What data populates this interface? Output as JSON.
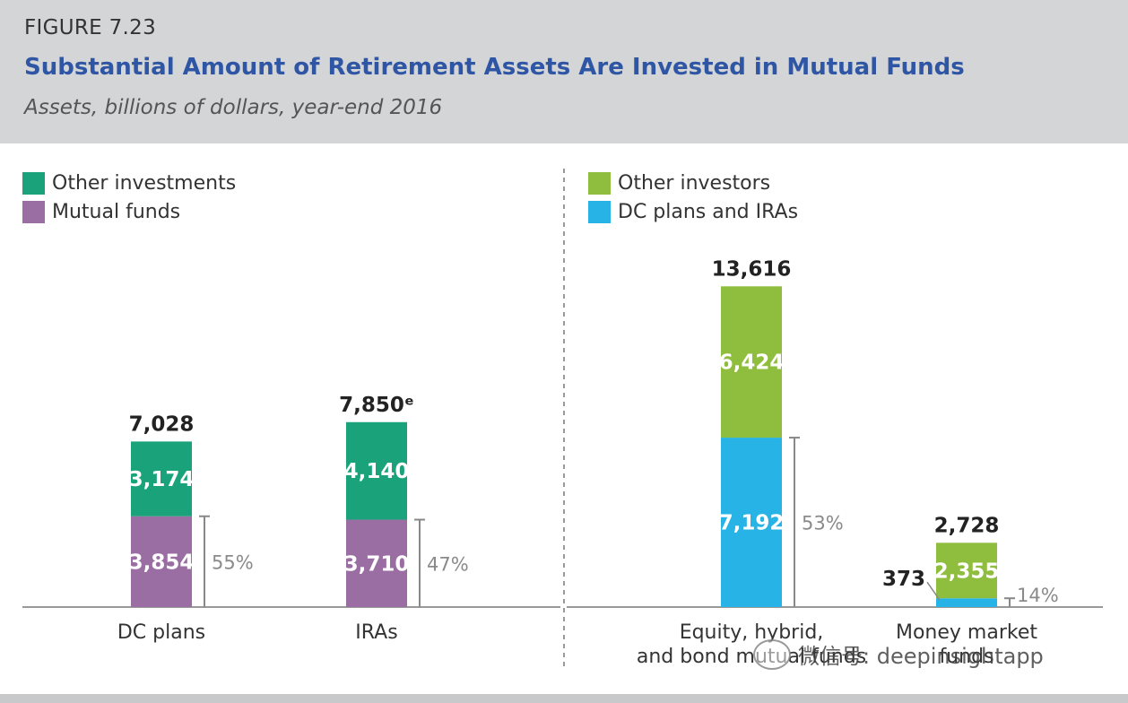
{
  "figure_label": "FIGURE 7.23",
  "title": "Substantial Amount of Retirement Assets Are Invested in Mutual Funds",
  "subtitle": "Assets, billions of dollars, year-end 2016",
  "colors": {
    "other_investments": "#1aa27a",
    "mutual_funds": "#9b6ea3",
    "other_investors": "#8fbd3d",
    "dc_plans_and_iras": "#27b3e6",
    "bracket": "#888888",
    "header_bg": "#d4d5d7",
    "title": "#2f56a5"
  },
  "legend_left": [
    {
      "label": "Other investments",
      "color": "#1aa27a"
    },
    {
      "label": "Mutual funds",
      "color": "#9b6ea3"
    }
  ],
  "legend_right": [
    {
      "label": "Other investors",
      "color": "#8fbd3d"
    },
    {
      "label": "DC plans and IRAs",
      "color": "#27b3e6"
    }
  ],
  "watermark": {
    "icon": "wechat-icon",
    "text": "微信号: deepinsightapp"
  },
  "chart_data": [
    {
      "type": "bar",
      "stacked": true,
      "categories": [
        "DC plans",
        "IRAs"
      ],
      "series": [
        {
          "name": "Mutual funds",
          "values": [
            3854,
            3710
          ],
          "color": "#9b6ea3"
        },
        {
          "name": "Other investments",
          "values": [
            3174,
            4140
          ],
          "color": "#1aa27a"
        }
      ],
      "totals": [
        "7,028",
        "7,850ᵉ"
      ],
      "total_values": [
        7028,
        7850
      ],
      "segment_labels": {
        "Mutual funds": [
          "3,854",
          "3,710"
        ],
        "Other investments": [
          "3,174",
          "4,140"
        ]
      },
      "share_labels": [
        "55%",
        "47%"
      ],
      "ylim": [
        0,
        14000
      ]
    },
    {
      "type": "bar",
      "stacked": true,
      "categories": [
        "Equity, hybrid, and bond mutual funds",
        "Money market funds"
      ],
      "category_lines": [
        [
          "Equity, hybrid,",
          "and bond mutual funds"
        ],
        [
          "Money market",
          "funds"
        ]
      ],
      "series": [
        {
          "name": "DC plans and IRAs",
          "values": [
            7192,
            373
          ],
          "color": "#27b3e6"
        },
        {
          "name": "Other investors",
          "values": [
            6424,
            2355
          ],
          "color": "#8fbd3d"
        }
      ],
      "totals": [
        "13,616",
        "2,728"
      ],
      "total_values": [
        13616,
        2728
      ],
      "segment_labels": {
        "DC plans and IRAs": [
          "7,192",
          "373"
        ],
        "Other investors": [
          "6,424",
          "2,355"
        ]
      },
      "share_labels": [
        "53%",
        "14%"
      ],
      "ylim": [
        0,
        14000
      ]
    }
  ]
}
